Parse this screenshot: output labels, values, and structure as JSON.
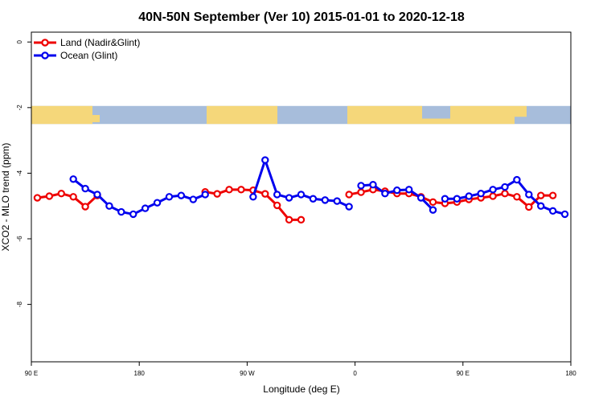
{
  "chart_data": {
    "type": "line",
    "title": "40N-50N September (Ver 10)   2015-01-01 to 2020-12-18",
    "xlabel": "Longitude (deg E)",
    "ylabel": "XCO2 - MLO trend (ppm)",
    "x_axis": {
      "range": [
        90,
        540
      ],
      "ticks": [
        90,
        180,
        270,
        360,
        450,
        540
      ],
      "tick_labels": [
        "90 E",
        "180",
        "90 W",
        "0",
        "90 E",
        "180"
      ]
    },
    "y_axis": {
      "range": [
        -9.75,
        0.3
      ],
      "ticks": [
        0,
        -2,
        -4,
        -6,
        -8
      ],
      "tick_labels": [
        "0",
        "-2",
        "-4",
        "-6",
        "-8"
      ]
    },
    "grid": false,
    "legend": "top-left",
    "map_strip": {
      "y_range": [
        -1.95,
        -2.5
      ],
      "land_color": "#f5d77a",
      "ocean_color": "#a7bddb"
    },
    "series": [
      {
        "name": "Land (Nadir&Glint)",
        "color": "#ee0000",
        "segments": [
          {
            "x": [
              95,
              105,
              115,
              125,
              135,
              145
            ],
            "y": [
              -4.75,
              -4.7,
              -4.62,
              -4.72,
              -5.02,
              -4.68
            ]
          },
          {
            "x": [
              235,
              245,
              255,
              265,
              275,
              285,
              295,
              305,
              315
            ],
            "y": [
              -4.57,
              -4.63,
              -4.5,
              -4.5,
              -4.52,
              -4.63,
              -4.98,
              -5.42,
              -5.42
            ]
          },
          {
            "x": [
              355,
              365,
              375,
              385,
              395,
              405,
              415,
              425,
              435,
              445,
              455,
              465,
              475,
              485,
              495,
              505,
              515,
              525
            ],
            "y": [
              -4.65,
              -4.58,
              -4.5,
              -4.55,
              -4.62,
              -4.62,
              -4.72,
              -4.88,
              -4.92,
              -4.88,
              -4.8,
              -4.75,
              -4.7,
              -4.62,
              -4.72,
              -5.03,
              -4.68,
              -4.68
            ]
          }
        ]
      },
      {
        "name": "Ocean (Glint)",
        "color": "#0000ee",
        "segments": [
          {
            "x": [
              125,
              135,
              145,
              155,
              165,
              175,
              185,
              195,
              205,
              215,
              225,
              235
            ],
            "y": [
              -4.18,
              -4.47,
              -4.65,
              -5.0,
              -5.18,
              -5.25,
              -5.07,
              -4.9,
              -4.72,
              -4.68,
              -4.8,
              -4.65
            ]
          },
          {
            "x": [
              275,
              285,
              295,
              305,
              315,
              325,
              335,
              345,
              355
            ],
            "y": [
              -4.72,
              -3.6,
              -4.65,
              -4.75,
              -4.65,
              -4.78,
              -4.82,
              -4.85,
              -5.02
            ]
          },
          {
            "x": [
              365,
              375,
              385,
              395,
              405,
              415,
              425
            ],
            "y": [
              -4.38,
              -4.35,
              -4.62,
              -4.52,
              -4.5,
              -4.75,
              -5.12
            ]
          },
          {
            "x": [
              435,
              445,
              455,
              465,
              475,
              485,
              495,
              505,
              515,
              525,
              535
            ],
            "y": [
              -4.78,
              -4.78,
              -4.7,
              -4.62,
              -4.5,
              -4.42,
              -4.2,
              -4.65,
              -5.0,
              -5.15,
              -5.25
            ]
          }
        ]
      }
    ]
  }
}
